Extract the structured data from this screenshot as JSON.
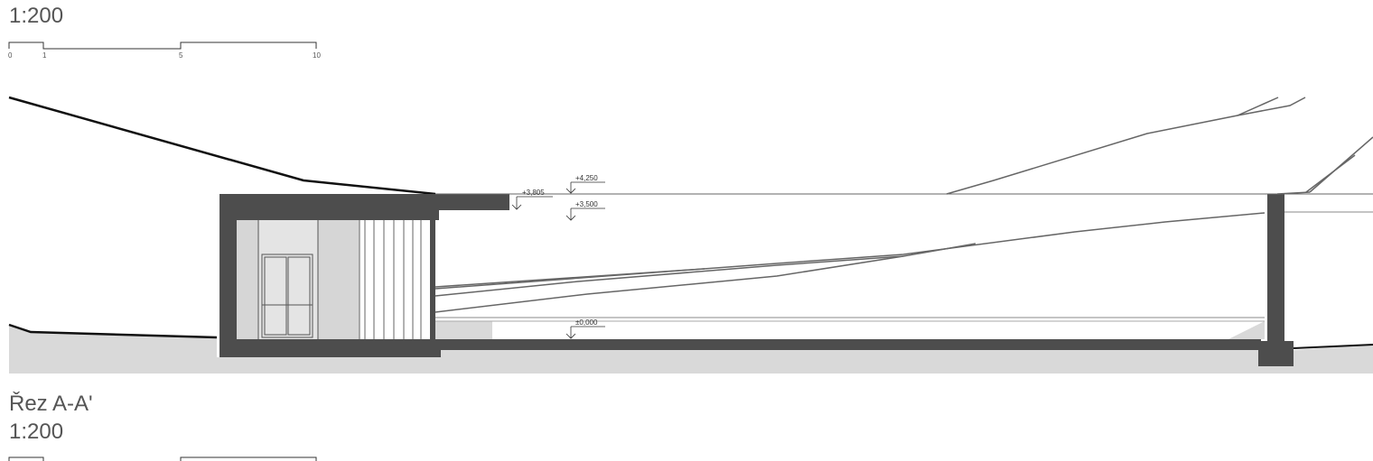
{
  "top_scale": {
    "ratio": "1:200",
    "ticks": [
      "0",
      "1",
      "5",
      "10"
    ]
  },
  "section": {
    "title": "Řez A-A'",
    "ratio": "1:200"
  },
  "levels": {
    "roof_top": "+4,250",
    "canopy": "+3,805",
    "ceiling": "+3,500",
    "floor": "±0,000"
  },
  "colors": {
    "wall": "#4d4d4d",
    "ground": "#d9d9d9",
    "line": "#111111",
    "thin": "#666666"
  }
}
